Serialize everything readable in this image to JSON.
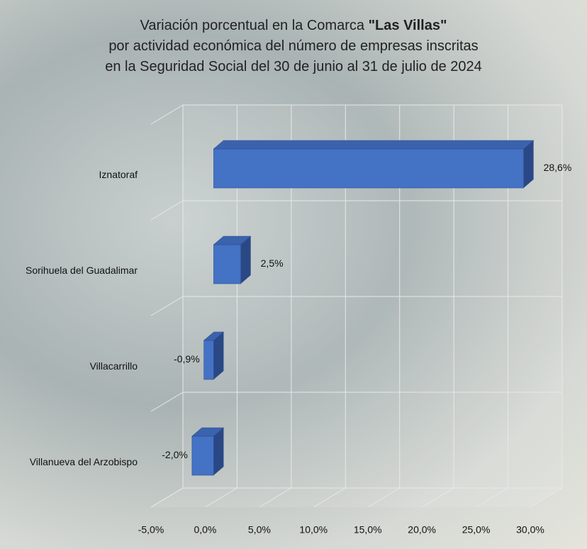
{
  "chart_data": {
    "type": "bar3d",
    "orientation": "horizontal",
    "title": [
      "Variación porcentual en la Comarca",
      "\"Las Villas\"",
      "por actividad económica del número de empresas inscritas",
      "en la Seguridad Social del 30 de junio al 31 de julio de 2024"
    ],
    "categories": [
      "Iznatoraf",
      "Sorihuela del Guadalimar",
      "Villacarrillo",
      "Villanueva del Arzobispo"
    ],
    "values": [
      28.6,
      2.5,
      -0.9,
      -2.0
    ],
    "value_labels": [
      "28,6%",
      "2,5%",
      "-0,9%",
      "-2,0%"
    ],
    "color": "#4472c4",
    "xlim": [
      -5,
      30
    ],
    "xticks": [
      {
        "value": -5,
        "label": "-5,0%"
      },
      {
        "value": 0,
        "label": "0,0%"
      },
      {
        "value": 5,
        "label": "5,0%"
      },
      {
        "value": 10,
        "label": "10,0%"
      },
      {
        "value": 15,
        "label": "15,0%"
      },
      {
        "value": 20,
        "label": "20,0%"
      },
      {
        "value": 25,
        "label": "25,0%"
      },
      {
        "value": 30,
        "label": "30,0%"
      }
    ],
    "grid": true
  }
}
